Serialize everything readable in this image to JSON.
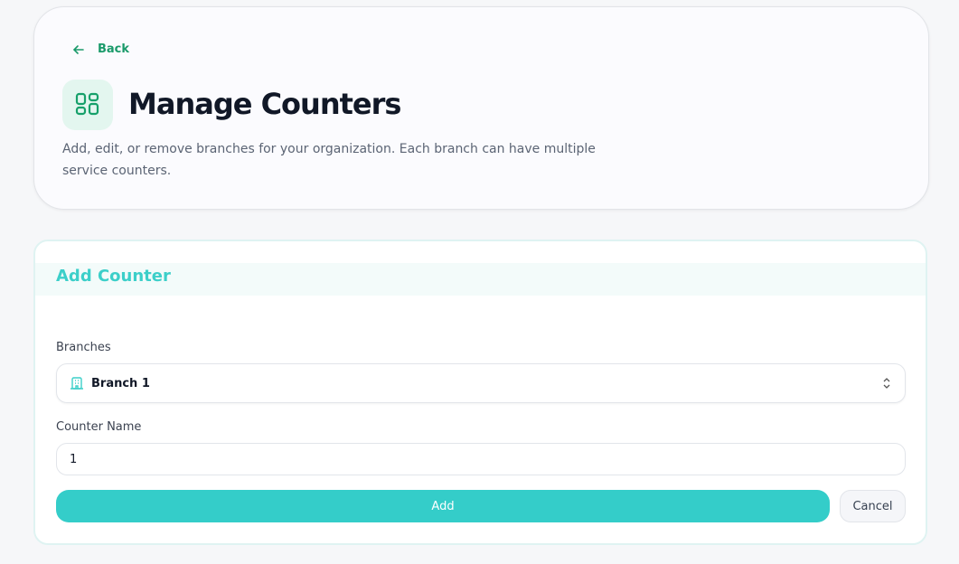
{
  "header": {
    "back_label": "Back",
    "title": "Manage Counters",
    "description": "Add, edit, or remove branches for your organization. Each branch can have multiple service counters.",
    "icon": "layout-grid-icon"
  },
  "form": {
    "title": "Add Counter",
    "branches_label": "Branches",
    "branch_value": "Branch 1",
    "counter_name_label": "Counter Name",
    "counter_name_value": "1",
    "add_label": "Add",
    "cancel_label": "Cancel"
  },
  "colors": {
    "accent": "#34cdc9",
    "brand_green": "#1a9a6a"
  }
}
